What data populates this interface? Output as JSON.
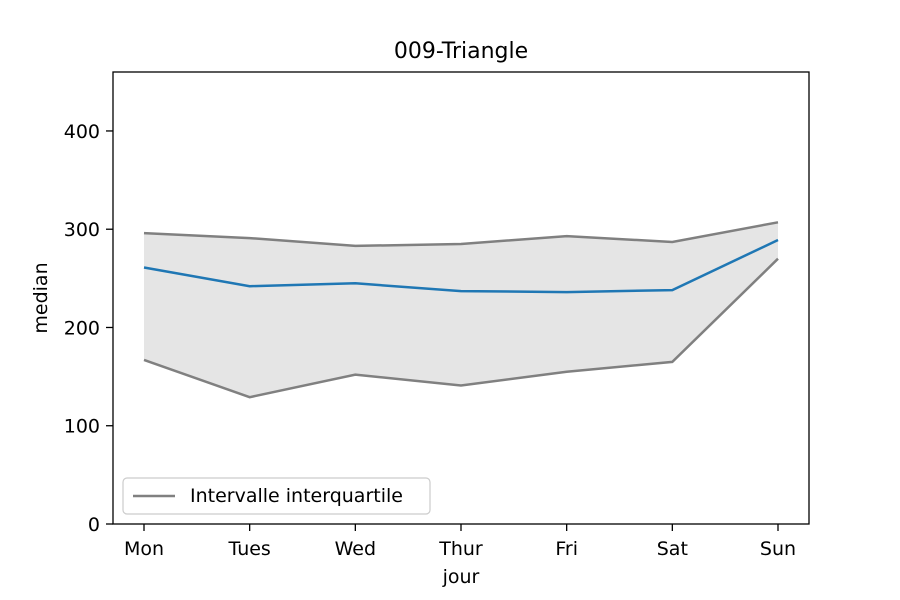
{
  "chart_data": {
    "type": "line",
    "title": "009-Triangle",
    "xlabel": "jour",
    "ylabel": "median",
    "categories": [
      "Mon",
      "Tues",
      "Wed",
      "Thur",
      "Fri",
      "Sat",
      "Sun"
    ],
    "ylim": [
      0,
      460
    ],
    "yticks": [
      0,
      100,
      200,
      300,
      400
    ],
    "grid": false,
    "legend_position": "lower-left",
    "series": [
      {
        "values": [
          261,
          242,
          245,
          237,
          236,
          238,
          289
        ],
        "color": "#1f77b4"
      }
    ],
    "band": {
      "name": "Intervalle interquartile",
      "upper": [
        296,
        291,
        283,
        285,
        293,
        287,
        307
      ],
      "lower": [
        167,
        129,
        152,
        141,
        155,
        165,
        270
      ],
      "line_color": "#808080",
      "fill_color": "#e5e5e5"
    }
  }
}
